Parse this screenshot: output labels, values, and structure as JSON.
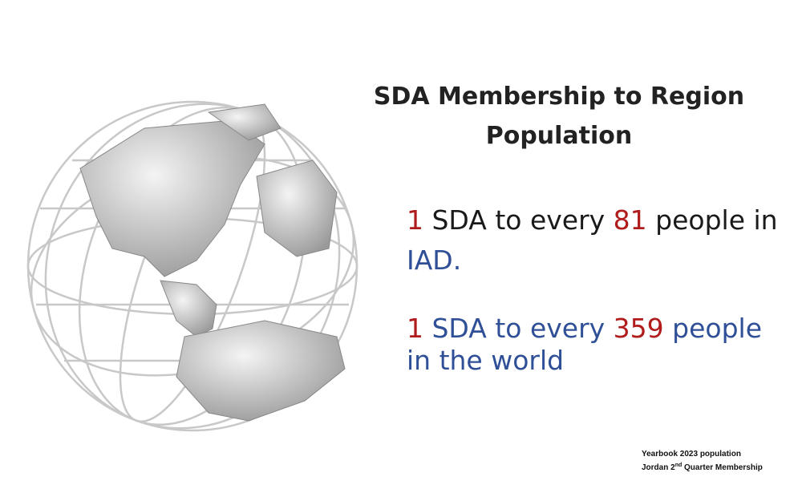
{
  "title": {
    "lines": [
      "SDA Membership to Region",
      "Population"
    ]
  },
  "statements": [
    {
      "lines": [
        [
          "1",
          " SDA to every ",
          "81",
          " people in"
        ],
        [
          "IAD."
        ]
      ]
    },
    {
      "lines": [
        [
          "1",
          " SDA to every ",
          "359",
          " people"
        ],
        [
          "in the world"
        ]
      ]
    }
  ],
  "footnote": {
    "line1": "Yearbook 2023 population",
    "line2": [
      "Jordan 2",
      "nd",
      " Quarter Membership"
    ]
  }
}
